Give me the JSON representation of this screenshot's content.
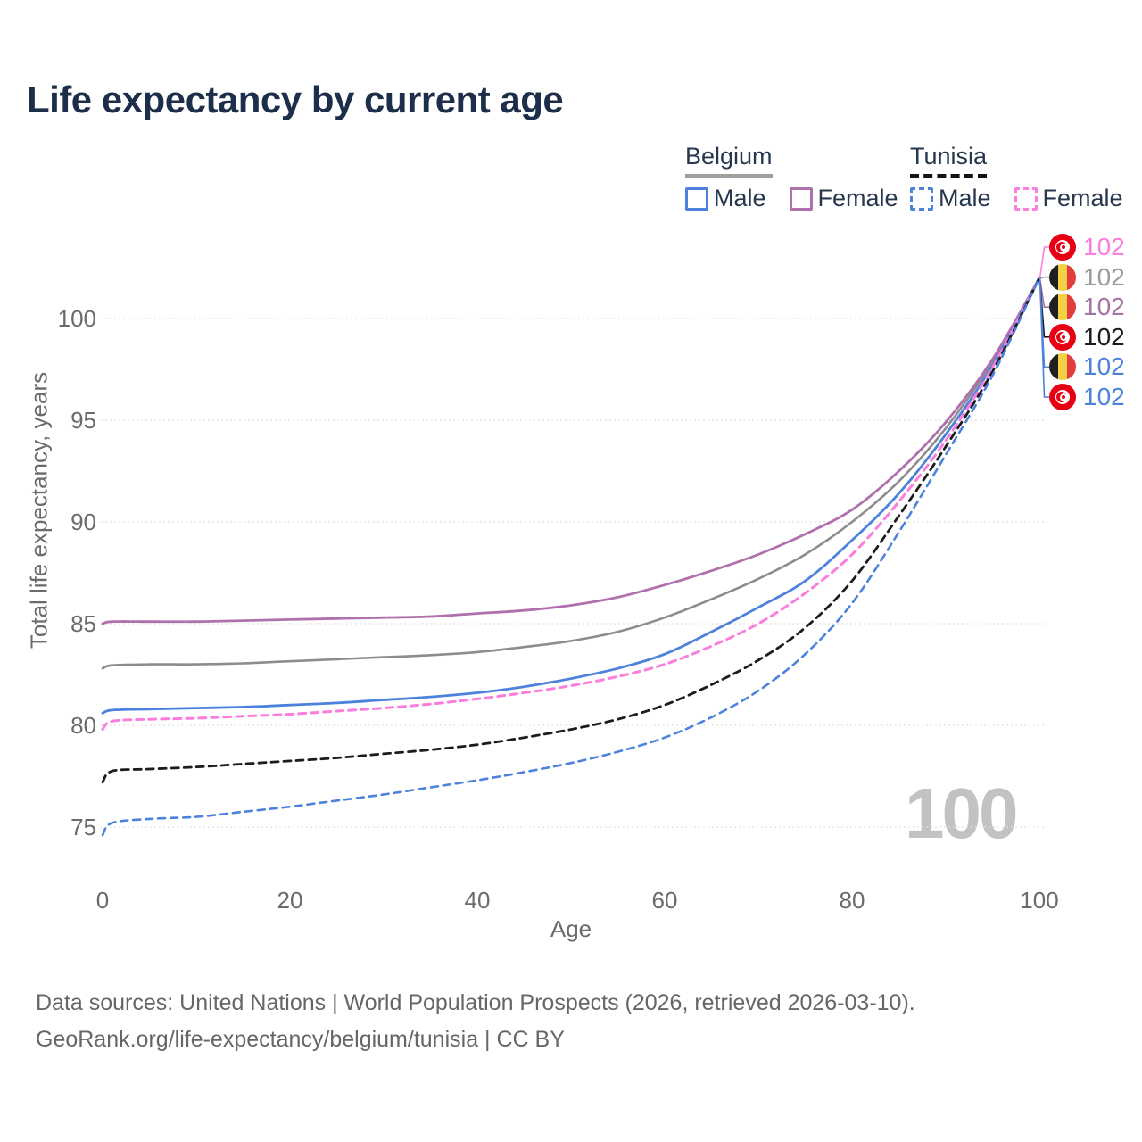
{
  "title": "Life expectancy by current age",
  "watermark": "100",
  "legend": {
    "groups": [
      {
        "country": "Belgium",
        "line_style": "solid",
        "underline_color": "#9f9f9f",
        "items": [
          {
            "label": "Male",
            "color": "#4d82dc",
            "dashed": false
          },
          {
            "label": "Female",
            "color": "#b06fad",
            "dashed": false
          }
        ]
      },
      {
        "country": "Tunisia",
        "line_style": "dashed",
        "underline_color": "#141414",
        "items": [
          {
            "label": "Male",
            "color": "#4d82dc",
            "dashed": true
          },
          {
            "label": "Female",
            "color": "#fb7ede",
            "dashed": true
          }
        ]
      }
    ]
  },
  "end_labels": [
    {
      "flag": "tunisia",
      "series": "Tunisia Female",
      "value": "102",
      "color": "#fb7ede"
    },
    {
      "flag": "belgium",
      "series": "Belgium",
      "value": "102",
      "color": "#9a9a9a"
    },
    {
      "flag": "belgium",
      "series": "Belgium Female",
      "value": "102",
      "color": "#a672a6"
    },
    {
      "flag": "tunisia",
      "series": "Tunisia",
      "value": "102",
      "color": "#1c1c1c"
    },
    {
      "flag": "belgium",
      "series": "Belgium Male",
      "value": "102",
      "color": "#4d82dc"
    },
    {
      "flag": "tunisia",
      "series": "Tunisia Male",
      "value": "102",
      "color": "#4d82dc"
    }
  ],
  "footer": {
    "line1": "Data sources: United Nations | World Population Prospects (2026, retrieved 2026-03-10).",
    "line2": "GeoRank.org/life-expectancy/belgium/tunisia | CC BY"
  },
  "chart_data": {
    "type": "line",
    "title": "Life expectancy by current age",
    "xlabel": "Age",
    "ylabel": "Total life expectancy, years",
    "grid": "horizontal",
    "legend_position": "top-right",
    "x": [
      0,
      1,
      5,
      10,
      15,
      20,
      25,
      30,
      35,
      40,
      45,
      50,
      55,
      60,
      65,
      70,
      75,
      80,
      85,
      90,
      95,
      100
    ],
    "xticks": [
      0,
      20,
      40,
      60,
      80,
      100
    ],
    "yticks": [
      75,
      80,
      85,
      90,
      95,
      100
    ],
    "xlim": [
      0,
      100
    ],
    "ylim": [
      72.5,
      103
    ],
    "series": [
      {
        "name": "Belgium",
        "country": "Belgium",
        "sex": "Both",
        "color": "#8c8c8c",
        "dashed": false,
        "width": 2.6,
        "values": [
          82.8,
          82.95,
          83.0,
          83.0,
          83.05,
          83.15,
          83.25,
          83.35,
          83.45,
          83.6,
          83.85,
          84.15,
          84.6,
          85.3,
          86.2,
          87.2,
          88.4,
          90.0,
          92.0,
          94.6,
          97.9,
          102
        ]
      },
      {
        "name": "Belgium Female",
        "country": "Belgium",
        "sex": "Female",
        "color": "#b06fad",
        "dashed": false,
        "width": 2.8,
        "values": [
          85.0,
          85.1,
          85.1,
          85.1,
          85.15,
          85.2,
          85.25,
          85.3,
          85.35,
          85.5,
          85.65,
          85.9,
          86.3,
          86.9,
          87.6,
          88.4,
          89.4,
          90.6,
          92.5,
          94.9,
          98.0,
          102
        ]
      },
      {
        "name": "Belgium Male",
        "country": "Belgium",
        "sex": "Male",
        "color": "#4d82dc",
        "dashed": false,
        "width": 2.8,
        "values": [
          80.6,
          80.75,
          80.8,
          80.85,
          80.9,
          81.0,
          81.1,
          81.25,
          81.4,
          81.6,
          81.9,
          82.3,
          82.8,
          83.5,
          84.6,
          85.8,
          87.1,
          89.1,
          91.4,
          94.3,
          97.7,
          102
        ]
      },
      {
        "name": "Tunisia Female",
        "country": "Tunisia",
        "sex": "Female",
        "color": "#fb7ede",
        "dashed": true,
        "width": 3.0,
        "values": [
          79.8,
          80.2,
          80.3,
          80.35,
          80.45,
          80.55,
          80.7,
          80.85,
          81.05,
          81.3,
          81.6,
          81.95,
          82.4,
          83.0,
          83.9,
          85.0,
          86.5,
          88.4,
          91.0,
          94.0,
          97.6,
          102
        ]
      },
      {
        "name": "Tunisia",
        "country": "Tunisia",
        "sex": "Both",
        "color": "#1c1c1c",
        "dashed": true,
        "width": 2.8,
        "values": [
          77.2,
          77.75,
          77.85,
          77.95,
          78.1,
          78.25,
          78.4,
          78.6,
          78.8,
          79.05,
          79.4,
          79.8,
          80.3,
          81.0,
          82.0,
          83.2,
          84.8,
          87.1,
          90.3,
          93.7,
          97.4,
          102
        ]
      },
      {
        "name": "Tunisia Male",
        "country": "Tunisia",
        "sex": "Male",
        "color": "#4d82dc",
        "dashed": true,
        "width": 2.6,
        "values": [
          74.6,
          75.2,
          75.4,
          75.5,
          75.75,
          76.0,
          76.3,
          76.6,
          76.95,
          77.3,
          77.7,
          78.15,
          78.7,
          79.4,
          80.4,
          81.7,
          83.5,
          86.0,
          89.5,
          93.3,
          97.2,
          102
        ]
      }
    ],
    "end_value_labels": [
      102,
      102,
      102,
      102,
      102,
      102
    ]
  }
}
